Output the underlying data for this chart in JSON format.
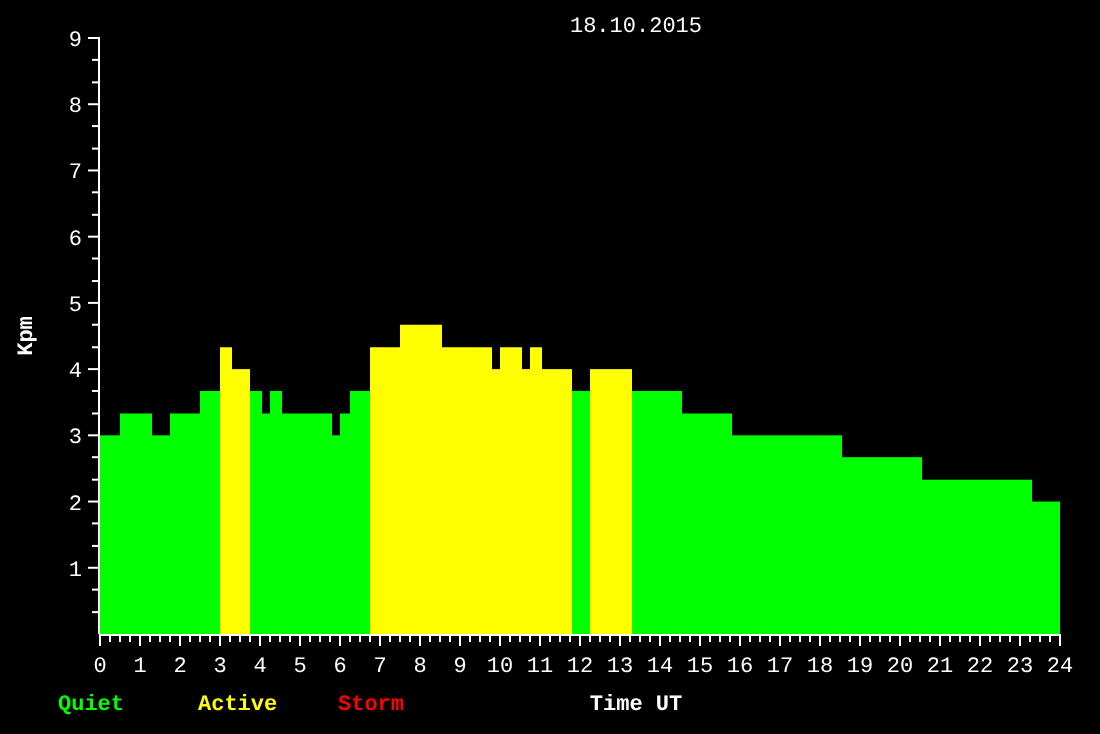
{
  "chart_data": {
    "type": "histogram",
    "title": "18.10.2015",
    "xlabel": "Time UT",
    "ylabel": "Kpm",
    "bins": [
      0,
      0.5,
      1.3,
      1.75,
      2.5,
      3,
      3.3,
      3.75,
      4.05,
      4.25,
      4.55,
      5.8,
      6,
      6.25,
      6.75,
      7.5,
      8.55,
      9.8,
      10,
      10.55,
      10.75,
      11.05,
      11.8,
      12.25,
      13.3,
      14.55,
      15.8,
      18.55,
      20.55,
      23.3,
      24
    ],
    "series": [
      {
        "name": "Quiet",
        "color": "#00ff00",
        "values": [
          3,
          3.33,
          3,
          3.33,
          3.67,
          null,
          null,
          3.67,
          3.33,
          3.67,
          3.33,
          3,
          3.33,
          3.67,
          null,
          null,
          null,
          null,
          null,
          null,
          null,
          null,
          3.67,
          null,
          3.67,
          3.33,
          3,
          2.67,
          2.33,
          2
        ]
      },
      {
        "name": "Active",
        "color": "#ffff00",
        "values": [
          null,
          null,
          null,
          null,
          null,
          4.33,
          4,
          null,
          null,
          null,
          null,
          null,
          null,
          null,
          4.33,
          4.67,
          4.33,
          4,
          4.33,
          4,
          4.33,
          4,
          null,
          4,
          null,
          null,
          null,
          null,
          null,
          null
        ]
      }
    ],
    "annotations": [
      "Storm"
    ],
    "xlim": [
      0,
      24
    ],
    "xticks": [
      0,
      {
        "value": 0.25,
        "label": null
      },
      {
        "value": 0.5,
        "label": null
      },
      {
        "value": 0.75,
        "label": null
      },
      1,
      {
        "value": 1.25,
        "label": null
      },
      {
        "value": 1.5,
        "label": null
      },
      {
        "value": 1.75,
        "label": null
      },
      2,
      {
        "value": 2.25,
        "label": null
      },
      {
        "value": 2.5,
        "label": null
      },
      {
        "value": 2.75,
        "label": null
      },
      3,
      {
        "value": 3.25,
        "label": null
      },
      {
        "value": 3.5,
        "label": null
      },
      {
        "value": 3.75,
        "label": null
      },
      4,
      {
        "value": 4.25,
        "label": null
      },
      {
        "value": 4.5,
        "label": null
      },
      {
        "value": 4.75,
        "label": null
      },
      5,
      {
        "value": 5.25,
        "label": null
      },
      {
        "value": 5.5,
        "label": null
      },
      {
        "value": 5.75,
        "label": null
      },
      6,
      {
        "value": 6.25,
        "label": null
      },
      {
        "value": 6.5,
        "label": null
      },
      {
        "value": 6.75,
        "label": null
      },
      7,
      {
        "value": 7.25,
        "label": null
      },
      {
        "value": 7.5,
        "label": null
      },
      {
        "value": 7.75,
        "label": null
      },
      8,
      {
        "value": 8.25,
        "label": null
      },
      {
        "value": 8.5,
        "label": null
      },
      {
        "value": 8.75,
        "label": null
      },
      9,
      {
        "value": 9.25,
        "label": null
      },
      {
        "value": 9.5,
        "label": null
      },
      {
        "value": 9.75,
        "label": null
      },
      10,
      {
        "value": 10.25,
        "label": null
      },
      {
        "value": 10.5,
        "label": null
      },
      {
        "value": 10.75,
        "label": null
      },
      11,
      {
        "value": 11.25,
        "label": null
      },
      {
        "value": 11.5,
        "label": null
      },
      {
        "value": 11.75,
        "label": null
      },
      12,
      {
        "value": 12.25,
        "label": null
      },
      {
        "value": 12.5,
        "label": null
      },
      {
        "value": 12.75,
        "label": null
      },
      13,
      {
        "value": 13.25,
        "label": null
      },
      {
        "value": 13.5,
        "label": null
      },
      {
        "value": 13.75,
        "label": null
      },
      14,
      {
        "value": 14.25,
        "label": null
      },
      {
        "value": 14.5,
        "label": null
      },
      {
        "value": 14.75,
        "label": null
      },
      15,
      {
        "value": 15.25,
        "label": null
      },
      {
        "value": 15.5,
        "label": null
      },
      {
        "value": 15.75,
        "label": null
      },
      16,
      {
        "value": 16.25,
        "label": null
      },
      {
        "value": 16.5,
        "label": null
      },
      {
        "value": 16.75,
        "label": null
      },
      17,
      {
        "value": 17.25,
        "label": null
      },
      {
        "value": 17.5,
        "label": null
      },
      {
        "value": 17.75,
        "label": null
      },
      18,
      {
        "value": 18.25,
        "label": null
      },
      {
        "value": 18.5,
        "label": null
      },
      {
        "value": 18.75,
        "label": null
      },
      19,
      {
        "value": 19.25,
        "label": null
      },
      {
        "value": 19.5,
        "label": null
      },
      {
        "value": 19.75,
        "label": null
      },
      20,
      {
        "value": 20.25,
        "label": null
      },
      {
        "value": 20.5,
        "label": null
      },
      {
        "value": 20.75,
        "label": null
      },
      21,
      {
        "value": 21.25,
        "label": null
      },
      {
        "value": 21.5,
        "label": null
      },
      {
        "value": 21.75,
        "label": null
      },
      22,
      {
        "value": 22.25,
        "label": null
      },
      {
        "value": 22.5,
        "label": null
      },
      {
        "value": 22.75,
        "label": null
      },
      23,
      {
        "value": 23.25,
        "label": null
      },
      {
        "value": 23.5,
        "label": null
      },
      {
        "value": 23.75,
        "label": null
      },
      24
    ],
    "ylim": [
      0,
      9
    ],
    "yticks": [
      {
        "value": 0.33,
        "label": null
      },
      {
        "value": 0.67,
        "label": null
      },
      1,
      {
        "value": 1.33,
        "label": null
      },
      {
        "value": 1.67,
        "label": null
      },
      2,
      {
        "value": 2.33,
        "label": null
      },
      {
        "value": 2.67,
        "label": null
      },
      3,
      {
        "value": 3.33,
        "label": null
      },
      {
        "value": 3.67,
        "label": null
      },
      4,
      {
        "value": 4.33,
        "label": null
      },
      {
        "value": 4.67,
        "label": null
      },
      5,
      {
        "value": 5.33,
        "label": null
      },
      {
        "value": 5.67,
        "label": null
      },
      6,
      {
        "value": 6.33,
        "label": null
      },
      {
        "value": 6.67,
        "label": null
      },
      7,
      {
        "value": 7.33,
        "label": null
      },
      {
        "value": 7.67,
        "label": null
      },
      8,
      {
        "value": 8.33,
        "label": null
      },
      {
        "value": 8.67,
        "label": null
      },
      9
    ],
    "legend": "bottom left",
    "grid": false
  }
}
